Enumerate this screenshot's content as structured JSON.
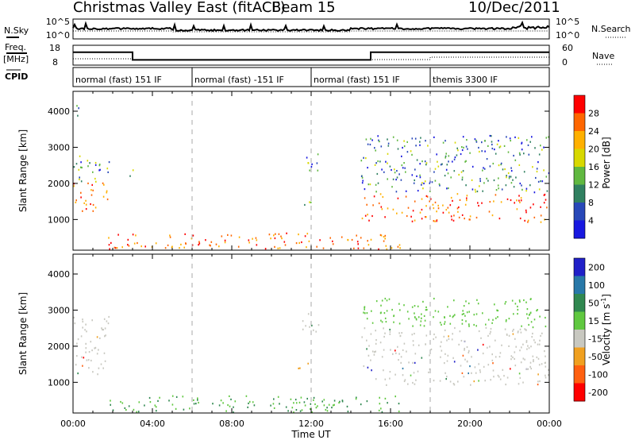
{
  "header": {
    "title": "Christmas Valley East (fitACF)",
    "beam_label": "Beam 15",
    "date": "10/Dec/2011"
  },
  "param_panels": {
    "nsky_label": "N.Sky",
    "nsky_ticks": [
      "10^5",
      "10^0"
    ],
    "nsearch_label": "N.Search",
    "nsearch_ticks": [
      "10^5",
      "10^0"
    ],
    "freq_label": "Freq.",
    "freq_unit": "[MHz]",
    "freq_ticks": [
      "18",
      "8"
    ],
    "nave_label": "Nave",
    "nave_ticks": [
      "60",
      "0"
    ],
    "cpid_label": "CPID",
    "cpid_segments": [
      {
        "label": "normal (fast) 151 IF",
        "start_h": 0,
        "end_h": 6
      },
      {
        "label": "normal (fast) -151 IF",
        "start_h": 6,
        "end_h": 12
      },
      {
        "label": "normal (fast) 151 IF",
        "start_h": 12,
        "end_h": 18
      },
      {
        "label": "themis 3300 IF",
        "start_h": 18,
        "end_h": 24
      }
    ],
    "freq_series": [
      {
        "h": 0,
        "mhz": 14.8
      },
      {
        "h": 3,
        "mhz": 14.8
      },
      {
        "h": 3,
        "mhz": 10.2
      },
      {
        "h": 15,
        "mhz": 10.2
      },
      {
        "h": 15,
        "mhz": 14.8
      },
      {
        "h": 24,
        "mhz": 14.8
      }
    ]
  },
  "chart_data": [
    {
      "type": "heatmap",
      "panel": "power",
      "ylabel": "Slant Range [km]",
      "yticks": [
        1000,
        2000,
        3000,
        4000
      ],
      "ylim": [
        150,
        4550
      ],
      "xlim": [
        0,
        24
      ],
      "colorbar_label": "Power [dB]",
      "colorbar_ticks": [
        "28",
        "24",
        "20",
        "16",
        "12",
        "8",
        "4"
      ],
      "colorbar_colors": [
        "#ff0000",
        "#ff6600",
        "#ffb000",
        "#d8d800",
        "#60b840",
        "#308060",
        "#2848b8",
        "#1818e0"
      ],
      "echo_regions": [
        {
          "h0": 0.0,
          "h1": 1.9,
          "r0": 1200,
          "r1": 2800
        },
        {
          "h0": 0.0,
          "h1": 0.5,
          "r0": 3850,
          "r1": 4150
        },
        {
          "h0": 2.8,
          "h1": 3.0,
          "r0": 2000,
          "r1": 2600
        },
        {
          "h0": 11.0,
          "h1": 12.2,
          "r0": 1350,
          "r1": 1500
        },
        {
          "h0": 11.5,
          "h1": 12.4,
          "r0": 2300,
          "r1": 2900
        },
        {
          "h0": 14.5,
          "h1": 24.0,
          "r0": 900,
          "r1": 3300
        },
        {
          "h0": 1.5,
          "h1": 16.5,
          "r0": 150,
          "r1": 600
        }
      ]
    },
    {
      "type": "heatmap",
      "panel": "velocity",
      "xlabel": "Time UT",
      "ylabel": "Slant Range [km]",
      "yticks": [
        1000,
        2000,
        3000,
        4000
      ],
      "ylim": [
        150,
        4550
      ],
      "xlim": [
        0,
        24
      ],
      "xticks": [
        "00:00",
        "04:00",
        "08:00",
        "12:00",
        "16:00",
        "20:00",
        "00:00"
      ],
      "colorbar_label": "Velocity [m s^-1]",
      "colorbar_ticks": [
        "200",
        "100",
        "50",
        "15",
        "-15",
        "-50",
        "-100",
        "-200"
      ],
      "colorbar_colors": [
        "#2020c8",
        "#2878a8",
        "#308850",
        "#60c840",
        "#c8c8c0",
        "#f0a020",
        "#ff6010",
        "#ff0000"
      ],
      "echo_regions": [
        {
          "h0": 0.0,
          "h1": 1.9,
          "r0": 1200,
          "r1": 2800
        },
        {
          "h0": 11.0,
          "h1": 12.2,
          "r0": 1350,
          "r1": 1500
        },
        {
          "h0": 11.5,
          "h1": 12.4,
          "r0": 2300,
          "r1": 2900
        },
        {
          "h0": 14.5,
          "h1": 24.0,
          "r0": 900,
          "r1": 3300
        },
        {
          "h0": 1.5,
          "h1": 16.5,
          "r0": 150,
          "r1": 600
        }
      ]
    }
  ]
}
